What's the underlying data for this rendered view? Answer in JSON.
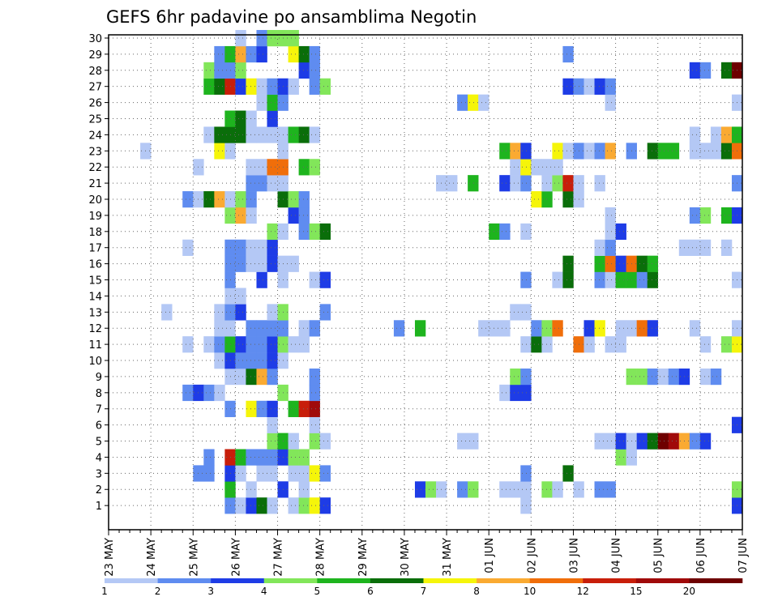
{
  "chart_data": {
    "type": "heatmap",
    "title": "GEFS 6hr padavine po ansamblima Negotin",
    "xlabel": "",
    "ylabel": "",
    "ylim": [
      0,
      30
    ],
    "grid": true,
    "legend": "bottom",
    "x_ticks": [
      "23 MAY",
      "24 MAY",
      "25 MAY",
      "26 MAY",
      "27 MAY",
      "28 MAY",
      "29 MAY",
      "30 MAY",
      "31 MAY",
      "01 JUN",
      "02 JUN",
      "03 JUN",
      "04 JUN",
      "05 JUN",
      "06 JUN",
      "07 JUN"
    ],
    "y_ticks": [
      1,
      2,
      3,
      4,
      5,
      6,
      7,
      8,
      9,
      10,
      11,
      12,
      13,
      14,
      15,
      16,
      17,
      18,
      19,
      20,
      21,
      22,
      23,
      24,
      25,
      26,
      27,
      28,
      29,
      30
    ],
    "steps_per_day": 4,
    "total_steps": 60,
    "levels": [
      "1",
      "2",
      "3",
      "4",
      "5",
      "6",
      "7",
      "8",
      "10",
      "12",
      "15",
      "20"
    ],
    "level_colors": [
      "#b4c8f5",
      "#5f8cf0",
      "#1e3ce6",
      "#82e65a",
      "#1eb41e",
      "#0a6e0a",
      "#f5f50a",
      "#faaa32",
      "#f06e0a",
      "#c81e0a",
      "#a00a0a",
      "#6e0000"
    ],
    "cells": [
      [
        1,
        11,
        2
      ],
      [
        1,
        12,
        1
      ],
      [
        1,
        13,
        3
      ],
      [
        1,
        14,
        6
      ],
      [
        1,
        15,
        1
      ],
      [
        1,
        17,
        1
      ],
      [
        1,
        18,
        4
      ],
      [
        1,
        19,
        7
      ],
      [
        1,
        20,
        3
      ],
      [
        1,
        39,
        1
      ],
      [
        1,
        59,
        3
      ],
      [
        2,
        11,
        5
      ],
      [
        2,
        13,
        1
      ],
      [
        2,
        16,
        3
      ],
      [
        2,
        18,
        1
      ],
      [
        2,
        29,
        3
      ],
      [
        2,
        30,
        4
      ],
      [
        2,
        31,
        1
      ],
      [
        2,
        33,
        2
      ],
      [
        2,
        34,
        4
      ],
      [
        2,
        37,
        1
      ],
      [
        2,
        38,
        1
      ],
      [
        2,
        39,
        1
      ],
      [
        2,
        41,
        4
      ],
      [
        2,
        42,
        1
      ],
      [
        2,
        44,
        1
      ],
      [
        2,
        46,
        2
      ],
      [
        2,
        47,
        2
      ],
      [
        2,
        59,
        4
      ],
      [
        3,
        8,
        2
      ],
      [
        3,
        9,
        2
      ],
      [
        3,
        11,
        3
      ],
      [
        3,
        12,
        1
      ],
      [
        3,
        14,
        1
      ],
      [
        3,
        15,
        1
      ],
      [
        3,
        17,
        1
      ],
      [
        3,
        18,
        1
      ],
      [
        3,
        19,
        7
      ],
      [
        3,
        20,
        2
      ],
      [
        3,
        39,
        2
      ],
      [
        3,
        43,
        6
      ],
      [
        4,
        9,
        2
      ],
      [
        4,
        11,
        10
      ],
      [
        4,
        12,
        5
      ],
      [
        4,
        13,
        2
      ],
      [
        4,
        14,
        2
      ],
      [
        4,
        15,
        2
      ],
      [
        4,
        16,
        3
      ],
      [
        4,
        17,
        4
      ],
      [
        4,
        18,
        4
      ],
      [
        4,
        48,
        4
      ],
      [
        4,
        49,
        1
      ],
      [
        5,
        15,
        4
      ],
      [
        5,
        16,
        5
      ],
      [
        5,
        17,
        1
      ],
      [
        5,
        19,
        4
      ],
      [
        5,
        20,
        1
      ],
      [
        5,
        33,
        1
      ],
      [
        5,
        34,
        1
      ],
      [
        5,
        46,
        1
      ],
      [
        5,
        47,
        1
      ],
      [
        5,
        48,
        3
      ],
      [
        5,
        49,
        1
      ],
      [
        5,
        50,
        3
      ],
      [
        5,
        51,
        6
      ],
      [
        5,
        52,
        12
      ],
      [
        5,
        53,
        11
      ],
      [
        5,
        54,
        8
      ],
      [
        5,
        55,
        2
      ],
      [
        5,
        56,
        3
      ],
      [
        6,
        15,
        1
      ],
      [
        6,
        19,
        1
      ],
      [
        6,
        59,
        3
      ],
      [
        7,
        11,
        2
      ],
      [
        7,
        13,
        7
      ],
      [
        7,
        14,
        2
      ],
      [
        7,
        15,
        3
      ],
      [
        7,
        17,
        5
      ],
      [
        7,
        18,
        10
      ],
      [
        7,
        19,
        11
      ],
      [
        8,
        7,
        2
      ],
      [
        8,
        8,
        3
      ],
      [
        8,
        9,
        2
      ],
      [
        8,
        10,
        1
      ],
      [
        8,
        16,
        4
      ],
      [
        8,
        19,
        2
      ],
      [
        8,
        37,
        1
      ],
      [
        8,
        38,
        3
      ],
      [
        8,
        39,
        3
      ],
      [
        9,
        11,
        1
      ],
      [
        9,
        12,
        1
      ],
      [
        9,
        13,
        6
      ],
      [
        9,
        14,
        8
      ],
      [
        9,
        15,
        2
      ],
      [
        9,
        19,
        2
      ],
      [
        9,
        38,
        4
      ],
      [
        9,
        39,
        2
      ],
      [
        9,
        49,
        4
      ],
      [
        9,
        50,
        4
      ],
      [
        9,
        51,
        2
      ],
      [
        9,
        52,
        1
      ],
      [
        9,
        53,
        2
      ],
      [
        9,
        54,
        3
      ],
      [
        9,
        56,
        1
      ],
      [
        9,
        57,
        2
      ],
      [
        10,
        10,
        1
      ],
      [
        10,
        11,
        3
      ],
      [
        10,
        12,
        2
      ],
      [
        10,
        13,
        2
      ],
      [
        10,
        14,
        2
      ],
      [
        10,
        15,
        3
      ],
      [
        10,
        16,
        1
      ],
      [
        11,
        7,
        1
      ],
      [
        11,
        9,
        1
      ],
      [
        11,
        10,
        2
      ],
      [
        11,
        11,
        5
      ],
      [
        11,
        12,
        3
      ],
      [
        11,
        13,
        2
      ],
      [
        11,
        14,
        2
      ],
      [
        11,
        15,
        3
      ],
      [
        11,
        16,
        4
      ],
      [
        11,
        17,
        1
      ],
      [
        11,
        18,
        1
      ],
      [
        11,
        39,
        1
      ],
      [
        11,
        40,
        6
      ],
      [
        11,
        41,
        1
      ],
      [
        11,
        44,
        9
      ],
      [
        11,
        45,
        1
      ],
      [
        11,
        47,
        1
      ],
      [
        11,
        48,
        1
      ],
      [
        11,
        56,
        1
      ],
      [
        11,
        58,
        4
      ],
      [
        11,
        59,
        7
      ],
      [
        12,
        10,
        1
      ],
      [
        12,
        11,
        1
      ],
      [
        12,
        13,
        2
      ],
      [
        12,
        14,
        2
      ],
      [
        12,
        15,
        2
      ],
      [
        12,
        16,
        2
      ],
      [
        12,
        18,
        1
      ],
      [
        12,
        19,
        2
      ],
      [
        12,
        27,
        2
      ],
      [
        12,
        29,
        5
      ],
      [
        12,
        35,
        1
      ],
      [
        12,
        36,
        1
      ],
      [
        12,
        37,
        1
      ],
      [
        12,
        40,
        2
      ],
      [
        12,
        41,
        4
      ],
      [
        12,
        42,
        9
      ],
      [
        12,
        45,
        3
      ],
      [
        12,
        46,
        7
      ],
      [
        12,
        48,
        1
      ],
      [
        12,
        49,
        1
      ],
      [
        12,
        50,
        9
      ],
      [
        12,
        51,
        3
      ],
      [
        12,
        55,
        1
      ],
      [
        12,
        59,
        1
      ],
      [
        13,
        5,
        1
      ],
      [
        13,
        10,
        1
      ],
      [
        13,
        11,
        2
      ],
      [
        13,
        12,
        3
      ],
      [
        13,
        15,
        1
      ],
      [
        13,
        16,
        4
      ],
      [
        13,
        20,
        2
      ],
      [
        13,
        38,
        1
      ],
      [
        13,
        39,
        1
      ],
      [
        14,
        11,
        1
      ],
      [
        14,
        12,
        1
      ],
      [
        15,
        11,
        2
      ],
      [
        15,
        14,
        3
      ],
      [
        15,
        16,
        1
      ],
      [
        15,
        19,
        1
      ],
      [
        15,
        20,
        3
      ],
      [
        15,
        39,
        2
      ],
      [
        15,
        42,
        1
      ],
      [
        15,
        43,
        6
      ],
      [
        15,
        46,
        2
      ],
      [
        15,
        47,
        1
      ],
      [
        15,
        48,
        5
      ],
      [
        15,
        49,
        5
      ],
      [
        15,
        50,
        2
      ],
      [
        15,
        51,
        6
      ],
      [
        15,
        59,
        1
      ],
      [
        16,
        11,
        2
      ],
      [
        16,
        12,
        2
      ],
      [
        16,
        13,
        1
      ],
      [
        16,
        14,
        1
      ],
      [
        16,
        15,
        3
      ],
      [
        16,
        16,
        1
      ],
      [
        16,
        17,
        1
      ],
      [
        16,
        43,
        6
      ],
      [
        16,
        46,
        5
      ],
      [
        16,
        47,
        9
      ],
      [
        16,
        48,
        3
      ],
      [
        16,
        49,
        9
      ],
      [
        16,
        50,
        6
      ],
      [
        16,
        51,
        5
      ],
      [
        17,
        7,
        1
      ],
      [
        17,
        11,
        2
      ],
      [
        17,
        12,
        2
      ],
      [
        17,
        13,
        1
      ],
      [
        17,
        14,
        1
      ],
      [
        17,
        15,
        3
      ],
      [
        17,
        46,
        1
      ],
      [
        17,
        47,
        2
      ],
      [
        17,
        54,
        1
      ],
      [
        17,
        55,
        1
      ],
      [
        17,
        56,
        1
      ],
      [
        17,
        58,
        1
      ],
      [
        18,
        15,
        4
      ],
      [
        18,
        16,
        1
      ],
      [
        18,
        18,
        2
      ],
      [
        18,
        19,
        4
      ],
      [
        18,
        20,
        6
      ],
      [
        18,
        36,
        5
      ],
      [
        18,
        37,
        2
      ],
      [
        18,
        39,
        1
      ],
      [
        18,
        47,
        1
      ],
      [
        18,
        48,
        3
      ],
      [
        19,
        11,
        4
      ],
      [
        19,
        12,
        8
      ],
      [
        19,
        13,
        1
      ],
      [
        19,
        17,
        3
      ],
      [
        19,
        18,
        2
      ],
      [
        19,
        47,
        1
      ],
      [
        19,
        55,
        2
      ],
      [
        19,
        56,
        4
      ],
      [
        19,
        58,
        5
      ],
      [
        19,
        59,
        3
      ],
      [
        20,
        7,
        2
      ],
      [
        20,
        8,
        1
      ],
      [
        20,
        9,
        6
      ],
      [
        20,
        10,
        8
      ],
      [
        20,
        11,
        1
      ],
      [
        20,
        12,
        4
      ],
      [
        20,
        13,
        2
      ],
      [
        20,
        16,
        6
      ],
      [
        20,
        17,
        4
      ],
      [
        20,
        18,
        2
      ],
      [
        20,
        40,
        7
      ],
      [
        20,
        41,
        5
      ],
      [
        20,
        43,
        6
      ],
      [
        20,
        44,
        1
      ],
      [
        21,
        13,
        2
      ],
      [
        21,
        14,
        2
      ],
      [
        21,
        15,
        1
      ],
      [
        21,
        16,
        1
      ],
      [
        21,
        31,
        1
      ],
      [
        21,
        32,
        1
      ],
      [
        21,
        34,
        5
      ],
      [
        21,
        37,
        3
      ],
      [
        21,
        38,
        1
      ],
      [
        21,
        39,
        2
      ],
      [
        21,
        41,
        1
      ],
      [
        21,
        42,
        4
      ],
      [
        21,
        43,
        10
      ],
      [
        21,
        44,
        1
      ],
      [
        21,
        46,
        1
      ],
      [
        21,
        59,
        2
      ],
      [
        22,
        8,
        1
      ],
      [
        22,
        13,
        1
      ],
      [
        22,
        14,
        1
      ],
      [
        22,
        15,
        9
      ],
      [
        22,
        16,
        9
      ],
      [
        22,
        18,
        5
      ],
      [
        22,
        19,
        4
      ],
      [
        22,
        38,
        1
      ],
      [
        22,
        39,
        7
      ],
      [
        22,
        40,
        1
      ],
      [
        22,
        41,
        1
      ],
      [
        22,
        42,
        1
      ],
      [
        23,
        3,
        1
      ],
      [
        23,
        10,
        7
      ],
      [
        23,
        11,
        1
      ],
      [
        23,
        16,
        1
      ],
      [
        23,
        37,
        5
      ],
      [
        23,
        38,
        8
      ],
      [
        23,
        39,
        3
      ],
      [
        23,
        42,
        7
      ],
      [
        23,
        43,
        1
      ],
      [
        23,
        44,
        2
      ],
      [
        23,
        45,
        1
      ],
      [
        23,
        46,
        2
      ],
      [
        23,
        47,
        8
      ],
      [
        23,
        49,
        2
      ],
      [
        23,
        51,
        6
      ],
      [
        23,
        52,
        5
      ],
      [
        23,
        53,
        5
      ],
      [
        23,
        55,
        1
      ],
      [
        23,
        56,
        1
      ],
      [
        23,
        57,
        1
      ],
      [
        23,
        58,
        6
      ],
      [
        23,
        59,
        9
      ],
      [
        24,
        9,
        1
      ],
      [
        24,
        10,
        6
      ],
      [
        24,
        11,
        6
      ],
      [
        24,
        12,
        6
      ],
      [
        24,
        13,
        1
      ],
      [
        24,
        14,
        1
      ],
      [
        24,
        15,
        1
      ],
      [
        24,
        16,
        1
      ],
      [
        24,
        17,
        5
      ],
      [
        24,
        18,
        6
      ],
      [
        24,
        19,
        1
      ],
      [
        24,
        55,
        1
      ],
      [
        24,
        57,
        1
      ],
      [
        24,
        58,
        8
      ],
      [
        24,
        59,
        5
      ],
      [
        25,
        11,
        5
      ],
      [
        25,
        12,
        6
      ],
      [
        25,
        13,
        1
      ],
      [
        25,
        15,
        3
      ],
      [
        26,
        14,
        1
      ],
      [
        26,
        15,
        5
      ],
      [
        26,
        16,
        2
      ],
      [
        26,
        33,
        2
      ],
      [
        26,
        34,
        7
      ],
      [
        26,
        35,
        1
      ],
      [
        26,
        47,
        1
      ],
      [
        26,
        59,
        1
      ],
      [
        27,
        9,
        5
      ],
      [
        27,
        10,
        6
      ],
      [
        27,
        11,
        10
      ],
      [
        27,
        12,
        3
      ],
      [
        27,
        13,
        7
      ],
      [
        27,
        14,
        1
      ],
      [
        27,
        15,
        2
      ],
      [
        27,
        16,
        3
      ],
      [
        27,
        17,
        1
      ],
      [
        27,
        19,
        2
      ],
      [
        27,
        20,
        4
      ],
      [
        27,
        43,
        3
      ],
      [
        27,
        44,
        2
      ],
      [
        27,
        45,
        1
      ],
      [
        27,
        46,
        3
      ],
      [
        27,
        47,
        2
      ],
      [
        28,
        9,
        4
      ],
      [
        28,
        10,
        2
      ],
      [
        28,
        11,
        2
      ],
      [
        28,
        12,
        4
      ],
      [
        28,
        18,
        3
      ],
      [
        28,
        19,
        2
      ],
      [
        28,
        55,
        3
      ],
      [
        28,
        56,
        2
      ],
      [
        28,
        58,
        6
      ],
      [
        28,
        59,
        12
      ],
      [
        29,
        10,
        2
      ],
      [
        29,
        11,
        5
      ],
      [
        29,
        12,
        8
      ],
      [
        29,
        13,
        2
      ],
      [
        29,
        14,
        3
      ],
      [
        29,
        17,
        7
      ],
      [
        29,
        18,
        6
      ],
      [
        29,
        19,
        2
      ],
      [
        29,
        43,
        2
      ],
      [
        30,
        12,
        1
      ],
      [
        30,
        14,
        2
      ],
      [
        30,
        15,
        4
      ],
      [
        30,
        16,
        4
      ],
      [
        30,
        17,
        4
      ]
    ]
  }
}
